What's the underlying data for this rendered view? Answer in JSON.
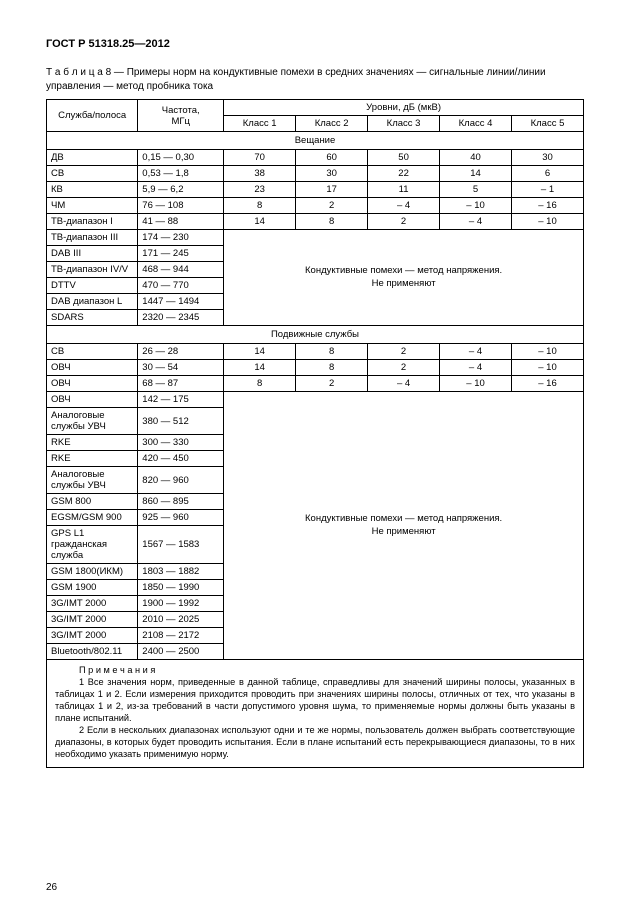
{
  "doc_header": "ГОСТ Р 51318.25—2012",
  "caption_label": "Т а б л и ц а",
  "caption_num": "8 —",
  "caption_text_l1": "Примеры норм на кондуктивные помехи в средних значениях — сигнальные линии/линии",
  "caption_text_l2": "управления — метод пробника тока",
  "hdr": {
    "service": "Служба/полоса",
    "freq": "Частота,\nМГц",
    "levels": "Уровни, дБ (мкВ)",
    "k1": "Класс 1",
    "k2": "Класс 2",
    "k3": "Класс 3",
    "k4": "Класс 4",
    "k5": "Класс 5"
  },
  "section1": "Вещание",
  "rows1": [
    {
      "s": "ДВ",
      "f": "0,15 — 0,30",
      "v": [
        "70",
        "60",
        "50",
        "40",
        "30"
      ]
    },
    {
      "s": "СВ",
      "f": "0,53 — 1,8",
      "v": [
        "38",
        "30",
        "22",
        "14",
        "6"
      ]
    },
    {
      "s": "КВ",
      "f": "5,9 — 6,2",
      "v": [
        "23",
        "17",
        "11",
        "5",
        "– 1"
      ]
    },
    {
      "s": "ЧМ",
      "f": "76 — 108",
      "v": [
        "8",
        "2",
        "– 4",
        "– 10",
        "– 16"
      ]
    },
    {
      "s": "ТВ-диапазон I",
      "f": "41 — 88",
      "v": [
        "14",
        "8",
        "2",
        "– 4",
        "– 10"
      ]
    }
  ],
  "rows1b": [
    {
      "s": "ТВ-диапазон III",
      "f": "174 — 230"
    },
    {
      "s": "DAB III",
      "f": "171 — 245"
    },
    {
      "s": "ТВ-диапазон IV/V",
      "f": "468 — 944"
    },
    {
      "s": "DTTV",
      "f": "470 — 770"
    },
    {
      "s": "DAB диапазон L",
      "f": "1447 — 1494"
    },
    {
      "s": "SDARS",
      "f": "2320 — 2345"
    }
  ],
  "note_na_l1": "Кондуктивные помехи — метод напряжения.",
  "note_na_l2": "Не применяют",
  "section2": "Подвижные службы",
  "rows2": [
    {
      "s": "СВ",
      "f": "26 — 28",
      "v": [
        "14",
        "8",
        "2",
        "– 4",
        "– 10"
      ]
    },
    {
      "s": "ОВЧ",
      "f": "30 — 54",
      "v": [
        "14",
        "8",
        "2",
        "– 4",
        "– 10"
      ]
    },
    {
      "s": "ОВЧ",
      "f": "68 — 87",
      "v": [
        "8",
        "2",
        "– 4",
        "– 10",
        "– 16"
      ]
    }
  ],
  "rows2b": [
    {
      "s": "ОВЧ",
      "f": "142 — 175"
    },
    {
      "s": "Аналоговые службы УВЧ",
      "f": "380 — 512"
    },
    {
      "s": "RKE",
      "f": "300 — 330"
    },
    {
      "s": "RKE",
      "f": "420 — 450"
    },
    {
      "s": "Аналоговые службы УВЧ",
      "f": "820 — 960"
    },
    {
      "s": "GSM 800",
      "f": "860 — 895"
    },
    {
      "s": "EGSM/GSM 900",
      "f": "925 — 960"
    },
    {
      "s": "GPS L1 гражданская служба",
      "f": "1567 — 1583"
    },
    {
      "s": "GSM 1800(ИКМ)",
      "f": "1803 — 1882"
    },
    {
      "s": "GSM 1900",
      "f": "1850 — 1990"
    },
    {
      "s": "3G/IMT 2000",
      "f": "1900 — 1992"
    },
    {
      "s": "3G/IMT 2000",
      "f": "2010 — 2025"
    },
    {
      "s": "3G/IMT 2000",
      "f": "2108 — 2172"
    },
    {
      "s": "Bluetooth/802.11",
      "f": "2400 — 2500"
    }
  ],
  "notes": {
    "title": "П р и м е ч а н и я",
    "n1": "1 Все значения норм, приведенные в данной таблице, справедливы для значений ширины полосы, указанных в таблицах 1 и 2. Если измерения приходится проводить при значениях ширины полосы, отличных от тех, что указаны в таблицах 1 и 2, из-за требований в части допустимого уровня шума, то применяемые нормы должны быть указаны в плане испытаний.",
    "n2": "2 Если в нескольких диапазонах используют одни и те же нормы, пользователь должен выбрать соответствующие диапазоны, в которых будет проводить испытания. Если в плане испытаний есть перекрывающиеся диапазоны, то в них необходимо указать применимую норму."
  },
  "page_number": "26"
}
